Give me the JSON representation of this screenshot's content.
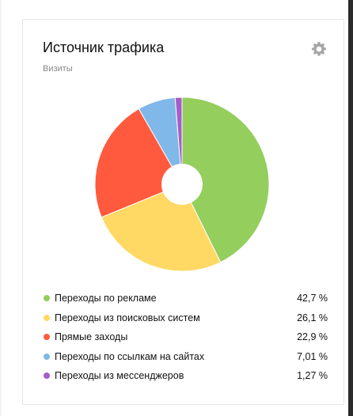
{
  "widget": {
    "title": "Источник трафика",
    "subtitle": "Визиты",
    "settings_icon": "gear-icon"
  },
  "chart_data": {
    "type": "pie",
    "donut": true,
    "categories": [
      "Переходы по рекламе",
      "Переходы из поисковых систем",
      "Прямые заходы",
      "Переходы по ссылкам на сайтах",
      "Переходы из мессенджеров"
    ],
    "values": [
      42.7,
      26.1,
      22.9,
      7.01,
      1.27
    ],
    "value_labels": [
      "42,7 %",
      "26,1 %",
      "22,9 %",
      "7,01 %",
      "1,27 %"
    ],
    "colors": [
      "#94ce5d",
      "#ffd963",
      "#ff5a3e",
      "#80b9e9",
      "#a55dc7"
    ],
    "legend_placement": "bottom"
  }
}
